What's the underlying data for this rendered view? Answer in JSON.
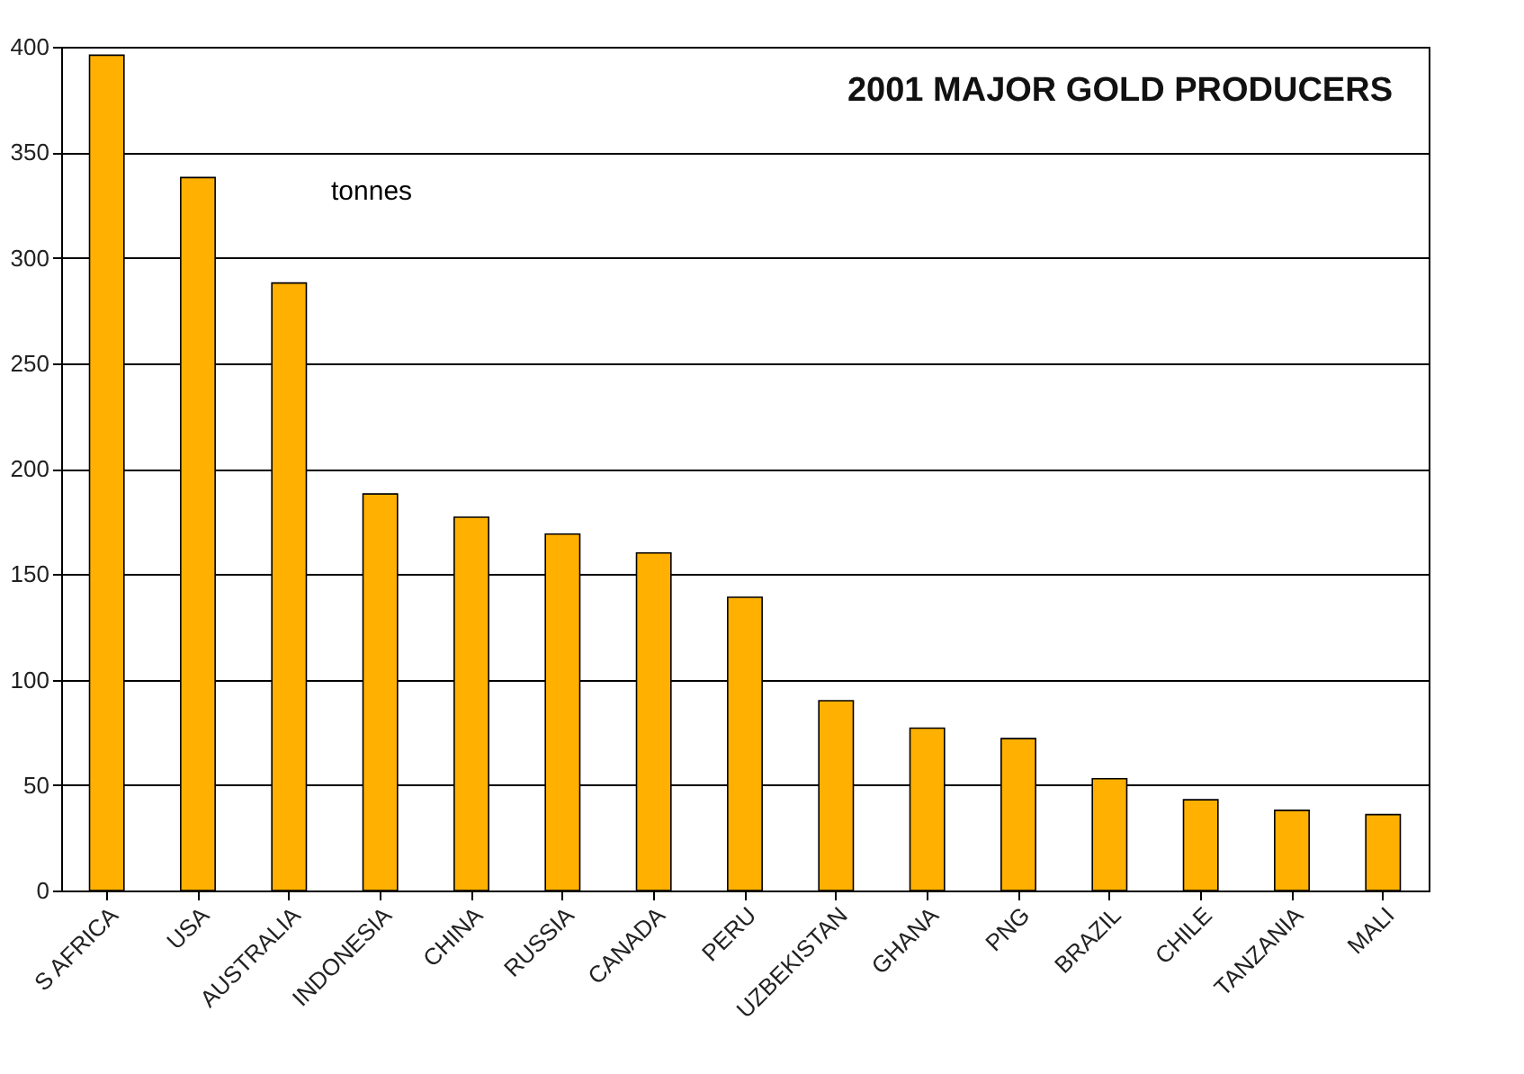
{
  "chart_data": {
    "type": "bar",
    "title": "2001 MAJOR GOLD PRODUCERS",
    "annotations": [
      "tonnes"
    ],
    "categories": [
      "S AFRICA",
      "USA",
      "AUSTRALIA",
      "INDONESIA",
      "CHINA",
      "RUSSIA",
      "CANADA",
      "PERU",
      "UZBEKISTAN",
      "GHANA",
      "PNG",
      "BRAZIL",
      "CHILE",
      "TANZANIA",
      "MALI"
    ],
    "values": [
      396,
      338,
      288,
      188,
      177,
      169,
      160,
      139,
      90,
      77,
      72,
      53,
      43,
      38,
      36
    ],
    "color": "#ffb000",
    "ylim": [
      0,
      400
    ],
    "yticks": [
      0,
      50,
      100,
      150,
      200,
      250,
      300,
      350,
      400
    ],
    "grid": "y"
  }
}
